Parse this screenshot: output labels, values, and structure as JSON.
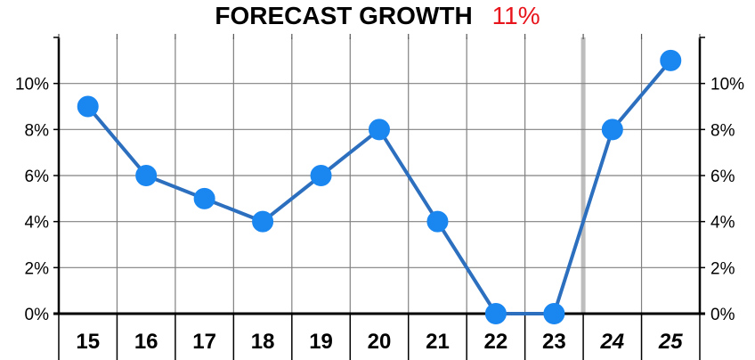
{
  "chart_data": {
    "type": "line",
    "title": "FORECAST GROWTH",
    "title_value": "11%",
    "categories": [
      "15",
      "16",
      "17",
      "18",
      "19",
      "20",
      "21",
      "22",
      "23",
      "24",
      "25"
    ],
    "forecast_categories": [
      "24",
      "25"
    ],
    "series": [
      {
        "values": [
          9,
          6,
          5,
          4,
          6,
          8,
          4,
          0,
          0,
          8,
          11
        ]
      }
    ],
    "y_ticks": [
      "0%",
      "2%",
      "4%",
      "6%",
      "8%",
      "10%"
    ],
    "y_tick_values": [
      0,
      2,
      4,
      6,
      8,
      10
    ],
    "ylim": [
      0,
      12
    ],
    "grid": true,
    "colors": {
      "line": "#2c6fbf",
      "marker": "#1a86f0",
      "title_value": "#e8141b",
      "grid": "#808080",
      "forecast_divider": "#bdbdbd"
    }
  }
}
